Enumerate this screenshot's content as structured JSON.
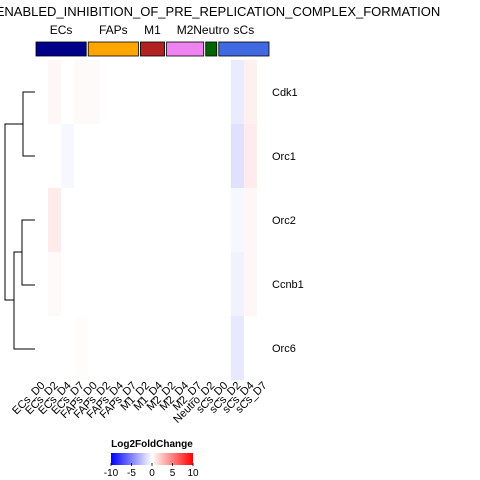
{
  "chart_data": {
    "type": "heatmap",
    "title": "ENABLED_INHIBITION_OF_PRE_REPLICATION_COMPLEX_FORMATION",
    "groups": [
      {
        "label": "ECs",
        "color": "#00008B",
        "columns": 4
      },
      {
        "label": "FAPs",
        "color": "#FFA500",
        "columns": 4
      },
      {
        "label": "M1",
        "color": "#B22222",
        "columns": 2
      },
      {
        "label": "M2",
        "color": "#EE82EE",
        "columns": 3
      },
      {
        "label": "Neutro",
        "color": "#006400",
        "columns": 1
      },
      {
        "label": "sCs",
        "color": "#4169E1",
        "columns": 4
      }
    ],
    "columns": [
      "ECs_D0",
      "ECs_D2",
      "ECs_D4",
      "ECs_D7",
      "FAPs_D0",
      "FAPs_D2",
      "FAPs_D4",
      "FAPs_D7",
      "M1_D2",
      "M1_D4",
      "M2_D2",
      "M2_D4",
      "M2_D7",
      "Neutro_D2",
      "sCs_D0",
      "sCs_D2",
      "sCs_D4",
      "sCs_D7"
    ],
    "rows": [
      "Cdk1",
      "Orc1",
      "Orc2",
      "Ccnb1",
      "Orc6"
    ],
    "values": [
      [
        0,
        0.3,
        0,
        0.2,
        0.2,
        0,
        0,
        0,
        0,
        0,
        0,
        0,
        0,
        0,
        0,
        -0.8,
        0.6,
        0
      ],
      [
        0,
        0,
        -0.3,
        0,
        0,
        0,
        0,
        0,
        0,
        0,
        0,
        0,
        0,
        0,
        0,
        -1.2,
        0.8,
        0
      ],
      [
        0,
        0.8,
        0,
        0,
        0,
        0,
        0,
        0,
        0,
        0,
        0,
        0,
        0,
        0,
        0,
        -0.3,
        0.3,
        0
      ],
      [
        0,
        0.2,
        0,
        0,
        0,
        0,
        0,
        0,
        0,
        0,
        0,
        0,
        0,
        0,
        0,
        -0.5,
        0.3,
        0
      ],
      [
        0,
        0,
        0,
        0.1,
        0,
        0,
        0,
        0,
        0,
        0,
        0,
        0,
        0,
        0,
        0,
        -0.9,
        0,
        0
      ]
    ],
    "legend": {
      "title": "Log2FoldChange",
      "ticks": [
        -10,
        -5,
        0,
        5,
        10
      ],
      "range": [
        -10,
        10
      ],
      "colors": [
        "#0000FF",
        "#FFFFFF",
        "#FF0000"
      ]
    },
    "dendrogram": "rows"
  }
}
